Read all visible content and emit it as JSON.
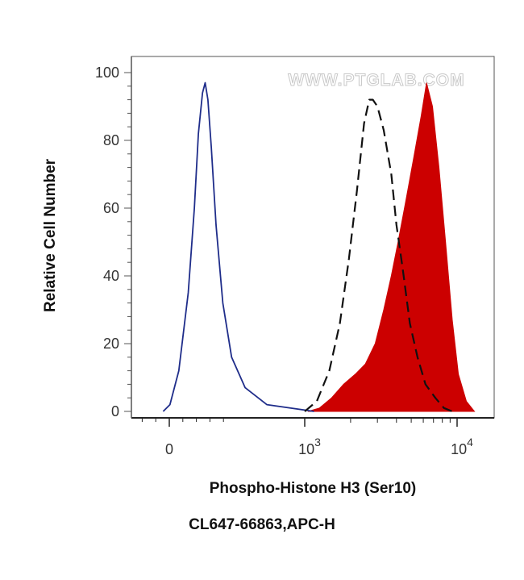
{
  "chart_data": {
    "type": "area",
    "xlabel": "Phospho-Histone H3 (Ser10)",
    "ylabel": "Relative Cell Number",
    "x_scale": "biexponential (log above 10^3)",
    "x_tick_labels": [
      {
        "x": 0,
        "label": "0"
      },
      {
        "x": 1000,
        "base": "10",
        "exp": "3"
      },
      {
        "x": 10000,
        "base": "10",
        "exp": "4"
      }
    ],
    "ylim": [
      0,
      100
    ],
    "y_ticks": [
      0,
      20,
      40,
      60,
      80,
      100
    ],
    "grid": false,
    "watermark": "WWW.PTGLAB.COM",
    "series": [
      {
        "style": "solid line",
        "color": "#1f2d8a",
        "points": [
          [
            -45,
            0
          ],
          [
            5,
            2
          ],
          [
            70,
            12
          ],
          [
            140,
            35
          ],
          [
            185,
            60
          ],
          [
            215,
            82
          ],
          [
            245,
            94
          ],
          [
            265,
            97
          ],
          [
            285,
            92
          ],
          [
            310,
            78
          ],
          [
            345,
            55
          ],
          [
            395,
            32
          ],
          [
            460,
            16
          ],
          [
            560,
            7
          ],
          [
            720,
            2
          ],
          [
            1150,
            0
          ]
        ]
      },
      {
        "style": "dashed line",
        "color": "#111111",
        "points": [
          [
            1000,
            0
          ],
          [
            1200,
            3
          ],
          [
            1450,
            12
          ],
          [
            1700,
            26
          ],
          [
            1950,
            45
          ],
          [
            2200,
            65
          ],
          [
            2450,
            85
          ],
          [
            2650,
            92
          ],
          [
            2800,
            92
          ],
          [
            3000,
            90
          ],
          [
            3300,
            83
          ],
          [
            3700,
            70
          ],
          [
            4000,
            55
          ],
          [
            4400,
            42
          ],
          [
            4900,
            26
          ],
          [
            5500,
            16
          ],
          [
            6200,
            8
          ],
          [
            7200,
            4
          ],
          [
            8200,
            1
          ],
          [
            9300,
            0
          ]
        ]
      },
      {
        "style": "filled area",
        "color": "#cc0000",
        "points": [
          [
            1050,
            0
          ],
          [
            1250,
            1
          ],
          [
            1500,
            4
          ],
          [
            1800,
            8
          ],
          [
            2150,
            11
          ],
          [
            2500,
            14
          ],
          [
            2900,
            20
          ],
          [
            3300,
            30
          ],
          [
            3700,
            40
          ],
          [
            4100,
            50
          ],
          [
            4600,
            62
          ],
          [
            5200,
            75
          ],
          [
            5800,
            87
          ],
          [
            6300,
            97
          ],
          [
            6900,
            90
          ],
          [
            7600,
            72
          ],
          [
            8400,
            50
          ],
          [
            9300,
            27
          ],
          [
            10200,
            11
          ],
          [
            11500,
            3
          ],
          [
            13000,
            0
          ]
        ]
      }
    ]
  },
  "caption": "CL647-66863,APC-H"
}
